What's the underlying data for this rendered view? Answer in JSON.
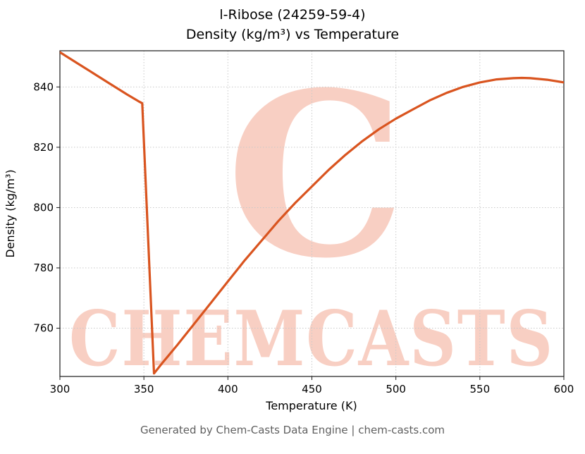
{
  "footer": "Generated by Chem-Casts Data Engine | chem-casts.com",
  "watermark": {
    "letter": "C",
    "text": "CHEMCASTS",
    "color": "#f3a088"
  },
  "chart_data": {
    "type": "line",
    "title": "l-Ribose (24259-59-4)",
    "subtitle": "Density (kg/m³) vs Temperature",
    "xlabel": "Temperature (K)",
    "ylabel": "Density (kg/m³)",
    "xlim": [
      300,
      600
    ],
    "ylim": [
      744,
      852
    ],
    "xticks": [
      300,
      350,
      400,
      450,
      500,
      550,
      600
    ],
    "yticks": [
      760,
      780,
      800,
      820,
      840
    ],
    "grid": true,
    "legend": "none",
    "line_color": "#d9541f",
    "grid_color": "#c8c8c8",
    "spine_color": "#1a1a1a",
    "series": [
      {
        "name": "density",
        "x": [
          300,
          310,
          320,
          330,
          340,
          347,
          349,
          356,
          361,
          370,
          380,
          390,
          400,
          410,
          420,
          430,
          440,
          450,
          460,
          470,
          480,
          490,
          500,
          510,
          520,
          530,
          540,
          550,
          560,
          570,
          575,
          580,
          590,
          600
        ],
        "y": [
          851.5,
          848.0,
          844.5,
          841.0,
          837.5,
          835.2,
          834.6,
          745.0,
          748.5,
          754.5,
          761.5,
          768.5,
          775.5,
          782.5,
          789.0,
          795.5,
          801.5,
          807.0,
          812.5,
          817.5,
          822.0,
          826.0,
          829.5,
          832.5,
          835.5,
          838.0,
          840.0,
          841.5,
          842.5,
          842.9,
          843.0,
          842.9,
          842.4,
          841.5
        ]
      }
    ]
  }
}
